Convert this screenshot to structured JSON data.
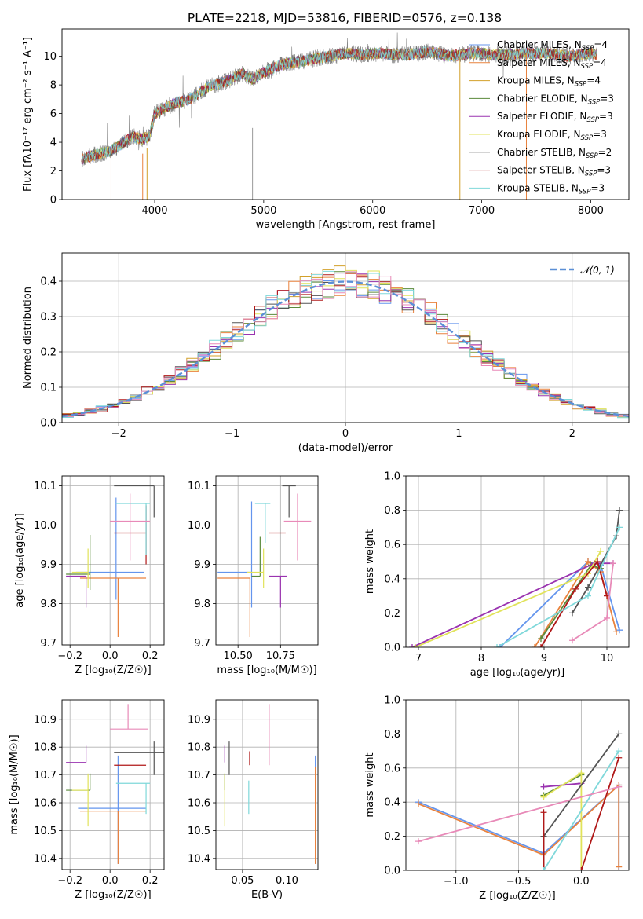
{
  "chart_data": [
    {
      "id": "spectrum",
      "type": "line",
      "title": "PLATE=2218, MJD=53816, FIBERID=0576, z=0.138",
      "xlabel": "wavelength [Angstrom, rest frame]",
      "ylabel": "Flux [f$_\\lambda$10$^{-17}$ erg cm$^{-2}$ s$^{-1}$ A$^{-1}$]",
      "ylabel_text": "Flux [fλ10⁻¹⁷ erg cm⁻² s⁻¹ A⁻¹]",
      "xlim": [
        3150,
        8350
      ],
      "ylim": [
        0,
        11.9
      ],
      "xticks": [
        "4000",
        "5000",
        "6000",
        "7000",
        "8000"
      ],
      "yticks": [
        "0",
        "2",
        "4",
        "6",
        "8",
        "10"
      ],
      "legend": "upper right",
      "series_names": [
        "Chabrier MILES, N_SSP=4",
        "Salpeter MILES, N_SSP=4",
        "Kroupa MILES, N_SSP=4",
        "Chabrier ELODIE, N_SSP=3",
        "Salpeter ELODIE, N_SSP=3",
        "Kroupa ELODIE, N_SSP=3",
        "Chabrier STELIB, N_SSP=2",
        "Salpeter STELIB, N_SSP=3",
        "Kroupa STELIB, N_SSP=3"
      ],
      "legend_items": [
        {
          "base": "Chabrier MILES, N",
          "sub": "SSP",
          "tail": "=4",
          "color": "#6495ed"
        },
        {
          "base": "Salpeter MILES, N",
          "sub": "SSP",
          "tail": "=4",
          "color": "#e9823d"
        },
        {
          "base": "Kroupa MILES, N",
          "sub": "SSP",
          "tail": "=4",
          "color": "#d2a02a"
        },
        {
          "base": "Chabrier ELODIE, N",
          "sub": "SSP",
          "tail": "=3",
          "color": "#5a8a3a"
        },
        {
          "base": "Salpeter ELODIE, N",
          "sub": "SSP",
          "tail": "=3",
          "color": "#9a33b0"
        },
        {
          "base": "Kroupa ELODIE, N",
          "sub": "SSP",
          "tail": "=3",
          "color": "#e1e35a"
        },
        {
          "base": "Chabrier STELIB, N",
          "sub": "SSP",
          "tail": "=2",
          "color": "#555555"
        },
        {
          "base": "Salpeter STELIB, N",
          "sub": "SSP",
          "tail": "=3",
          "color": "#b01818"
        },
        {
          "base": "Kroupa STELIB, N",
          "sub": "SSP",
          "tail": "=3",
          "color": "#7fd8da"
        }
      ],
      "data_series": {
        "name": "data",
        "color": "#808080"
      },
      "x": [
        3330,
        3400,
        3500,
        3600,
        3700,
        3800,
        3880,
        3950,
        4000,
        4100,
        4200,
        4300,
        4400,
        4500,
        4600,
        4700,
        4800,
        4900,
        5000,
        5100,
        5200,
        5300,
        5400,
        5500,
        5600,
        5700,
        5800,
        5900,
        6000,
        6100,
        6200,
        6300,
        6400,
        6500,
        6600,
        6700,
        6800,
        6900,
        7000,
        7100,
        7200,
        7300,
        7400,
        7500,
        7600,
        7700,
        7800,
        7900,
        8000,
        8060
      ],
      "y": [
        2.8,
        3.0,
        3.2,
        3.4,
        3.9,
        4.4,
        4.2,
        4.4,
        6.0,
        6.4,
        6.8,
        6.9,
        7.4,
        7.9,
        8.1,
        8.4,
        8.8,
        8.4,
        8.9,
        9.2,
        9.5,
        9.6,
        9.7,
        9.9,
        10.0,
        10.1,
        10.2,
        10.1,
        10.2,
        10.2,
        10.1,
        10.1,
        10.2,
        10.3,
        10.2,
        10.0,
        10.1,
        10.2,
        10.2,
        10.1,
        10.1,
        10.1,
        10.2,
        10.2,
        10.2,
        10.1,
        10.0,
        10.1,
        10.2,
        10.1
      ],
      "colors": [
        "#6495ed",
        "#e9823d",
        "#d2a02a",
        "#5a8a3a",
        "#9a33b0",
        "#e1e35a",
        "#555555",
        "#b01818",
        "#7fd8da"
      ]
    },
    {
      "id": "residuals",
      "type": "histogram",
      "xlabel": "(data-model)/error",
      "ylabel": "Normed distribution",
      "xlim": [
        -2.5,
        2.5
      ],
      "ylim": [
        0,
        0.48
      ],
      "xticks": [
        "−2",
        "−1",
        "0",
        "1",
        "2"
      ],
      "yticks": [
        "0.0",
        "0.1",
        "0.2",
        "0.3",
        "0.4"
      ],
      "grid": true,
      "legend": "upper right",
      "legend_label": "𝒩(0, 1)",
      "curve": {
        "name": "N(0,1)",
        "mean": 0,
        "sigma": 1,
        "color": "#5b8fd6"
      },
      "bin_width": 0.1,
      "colors": [
        "#6495ed",
        "#e9823d",
        "#d2a02a",
        "#5a8a3a",
        "#9a33b0",
        "#e1e35a",
        "#555555",
        "#b01818",
        "#7fd8da",
        "#e88ab8"
      ]
    },
    {
      "id": "age-Z",
      "type": "scatter",
      "xlabel": "Z [log₁₀(Z/Z☉)]",
      "ylabel": "age  [log₁₀(age/yr)]",
      "xlim": [
        -0.24,
        0.27
      ],
      "ylim": [
        9.695,
        10.125
      ],
      "xticks": [
        "−0.2",
        "0.0",
        "0.2"
      ],
      "yticks": [
        "9.7",
        "9.8",
        "9.9",
        "10.0",
        "10.1"
      ],
      "grid": true,
      "points": [
        {
          "x": 0.03,
          "y": 9.88,
          "xerr": [
            0.2,
            0.14
          ],
          "yerr": [
            0.07,
            0.19
          ],
          "color": "#6495ed"
        },
        {
          "x": 0.04,
          "y": 9.865,
          "xerr": [
            0.19,
            0.14
          ],
          "yerr": [
            0.15,
            0.0
          ],
          "color": "#e9823d"
        },
        {
          "x": -0.1,
          "y": 9.875,
          "xerr": [
            0.12,
            0.0
          ],
          "yerr": [
            0.04,
            0.1
          ],
          "color": "#5a8a3a"
        },
        {
          "x": -0.12,
          "y": 9.87,
          "xerr": [
            0.1,
            0.0
          ],
          "yerr": [
            0.08,
            0.0
          ],
          "color": "#9a33b0"
        },
        {
          "x": -0.11,
          "y": 9.88,
          "xerr": [
            0.08,
            0.0
          ],
          "yerr": [
            0.04,
            0.06
          ],
          "color": "#e1e35a"
        },
        {
          "x": 0.22,
          "y": 10.1,
          "xerr": [
            0.2,
            0.0
          ],
          "yerr": [
            0.08,
            0.0
          ],
          "color": "#555555"
        },
        {
          "x": 0.18,
          "y": 9.98,
          "xerr": [
            0.16,
            0.0
          ],
          "yerr": [
            0.08,
            0.07
          ],
          "color": "#b01818"
        },
        {
          "x": 0.18,
          "y": 10.055,
          "xerr": [
            0.15,
            0.02
          ],
          "yerr": [
            0.13,
            0.0
          ],
          "color": "#7fd8da"
        },
        {
          "x": 0.1,
          "y": 10.01,
          "xerr": [
            0.1,
            0.1
          ],
          "yerr": [
            0.1,
            0.07
          ],
          "color": "#e88ab8"
        }
      ]
    },
    {
      "id": "age-mass",
      "type": "scatter",
      "xlabel": "mass [log₁₀(M/M☉)]",
      "ylabel": "",
      "xlim": [
        10.37,
        10.97
      ],
      "ylim": [
        9.695,
        10.125
      ],
      "xticks": [
        "10.50",
        "10.75"
      ],
      "yticks": [
        "9.7",
        "9.8",
        "9.9",
        "10.0",
        "10.1"
      ],
      "grid": true,
      "points": [
        {
          "x": 10.58,
          "y": 9.88,
          "xerr": [
            0.2,
            0.0
          ],
          "yerr": [
            0.09,
            0.18
          ],
          "color": "#6495ed"
        },
        {
          "x": 10.57,
          "y": 9.865,
          "xerr": [
            0.19,
            0.0
          ],
          "yerr": [
            0.15,
            0.0
          ],
          "color": "#e9823d"
        },
        {
          "x": 10.63,
          "y": 9.87,
          "xerr": [
            0.05,
            0.0
          ],
          "yerr": [
            0.0,
            0.1
          ],
          "color": "#5a8a3a"
        },
        {
          "x": 10.75,
          "y": 9.87,
          "xerr": [
            0.07,
            0.04
          ],
          "yerr": [
            0.08,
            0.0
          ],
          "color": "#9a33b0"
        },
        {
          "x": 10.65,
          "y": 9.88,
          "xerr": [
            0.1,
            0.0
          ],
          "yerr": [
            0.04,
            0.06
          ],
          "color": "#e1e35a"
        },
        {
          "x": 10.8,
          "y": 10.1,
          "xerr": [
            0.04,
            0.04
          ],
          "yerr": [
            0.08,
            0.0
          ],
          "color": "#555555"
        },
        {
          "x": 10.73,
          "y": 9.98,
          "xerr": [
            0.05,
            0.05
          ],
          "yerr": [
            0.0,
            0.0
          ],
          "color": "#b01818"
        },
        {
          "x": 10.66,
          "y": 10.055,
          "xerr": [
            0.06,
            0.03
          ],
          "yerr": [
            0.1,
            0.0
          ],
          "color": "#7fd8da"
        },
        {
          "x": 10.85,
          "y": 10.01,
          "xerr": [
            0.08,
            0.08
          ],
          "yerr": [
            0.1,
            0.07
          ],
          "color": "#e88ab8"
        }
      ]
    },
    {
      "id": "weight-age",
      "type": "line",
      "xlabel": "age  [log₁₀(age/yr)]",
      "ylabel": "mass weight",
      "xlim": [
        6.8,
        10.35
      ],
      "ylim": [
        0,
        1.0
      ],
      "xticks": [
        "7",
        "8",
        "9",
        "10"
      ],
      "yticks": [
        "0.0",
        "0.2",
        "0.4",
        "0.6",
        "0.8",
        "1.0"
      ],
      "grid": true,
      "series": [
        {
          "color": "#6495ed",
          "x": [
            8.3,
            9.7,
            9.9,
            10.2
          ],
          "y": [
            0.0,
            0.5,
            0.48,
            0.1
          ]
        },
        {
          "color": "#e9823d",
          "x": [
            8.85,
            9.7,
            9.9,
            10.15
          ],
          "y": [
            0.0,
            0.5,
            0.44,
            0.09
          ]
        },
        {
          "color": "#5a8a3a",
          "x": [
            8.95,
            9.75,
            9.9
          ],
          "y": [
            0.05,
            0.48,
            0.46
          ]
        },
        {
          "color": "#9a33b0",
          "x": [
            6.9,
            9.8,
            10.1
          ],
          "y": [
            0.0,
            0.49,
            0.49
          ]
        },
        {
          "color": "#e1e35a",
          "x": [
            6.95,
            9.7,
            9.9
          ],
          "y": [
            0.0,
            0.43,
            0.56
          ]
        },
        {
          "color": "#555555",
          "x": [
            9.45,
            9.7,
            10.15,
            10.2
          ],
          "y": [
            0.2,
            0.35,
            0.65,
            0.8
          ]
        },
        {
          "color": "#b01818",
          "x": [
            8.95,
            9.5,
            9.85,
            10.0
          ],
          "y": [
            0.0,
            0.34,
            0.5,
            0.3
          ]
        },
        {
          "color": "#7fd8da",
          "x": [
            8.25,
            9.7,
            10.2
          ],
          "y": [
            0.0,
            0.3,
            0.7
          ]
        },
        {
          "color": "#e88ab8",
          "x": [
            9.45,
            10.0,
            10.1
          ],
          "y": [
            0.04,
            0.17,
            0.49
          ]
        }
      ]
    },
    {
      "id": "mass-Z",
      "type": "scatter",
      "xlabel": "Z [log₁₀(Z/Z☉)]",
      "ylabel": "mass [log₁₀(M/M☉)]",
      "xlim": [
        -0.24,
        0.27
      ],
      "ylim": [
        10.36,
        10.97
      ],
      "xticks": [
        "−0.2",
        "0.0",
        "0.2"
      ],
      "yticks": [
        "10.4",
        "10.5",
        "10.6",
        "10.7",
        "10.8",
        "10.9"
      ],
      "grid": true,
      "points": [
        {
          "x": 0.04,
          "y": 10.58,
          "xerr": [
            0.2,
            0.14
          ],
          "yerr": [
            0.2,
            0.19
          ],
          "color": "#6495ed"
        },
        {
          "x": 0.04,
          "y": 10.57,
          "xerr": [
            0.19,
            0.14
          ],
          "yerr": [
            0.19,
            0.0
          ],
          "color": "#e9823d"
        },
        {
          "x": -0.1,
          "y": 10.645,
          "xerr": [
            0.12,
            0.0
          ],
          "yerr": [
            0.0,
            0.06
          ],
          "color": "#5a8a3a"
        },
        {
          "x": -0.12,
          "y": 10.745,
          "xerr": [
            0.1,
            0.0
          ],
          "yerr": [
            0.0,
            0.06
          ],
          "color": "#9a33b0"
        },
        {
          "x": -0.11,
          "y": 10.645,
          "xerr": [
            0.08,
            0.0
          ],
          "yerr": [
            0.13,
            0.06
          ],
          "color": "#e1e35a"
        },
        {
          "x": 0.22,
          "y": 10.78,
          "xerr": [
            0.2,
            0.05
          ],
          "yerr": [
            0.08,
            0.04
          ],
          "color": "#555555"
        },
        {
          "x": 0.18,
          "y": 10.735,
          "xerr": [
            0.16,
            0.0
          ],
          "yerr": [
            0.0,
            0.0
          ],
          "color": "#b01818"
        },
        {
          "x": 0.18,
          "y": 10.67,
          "xerr": [
            0.15,
            0.02
          ],
          "yerr": [
            0.11,
            0.0
          ],
          "color": "#7fd8da"
        },
        {
          "x": 0.09,
          "y": 10.865,
          "xerr": [
            0.09,
            0.1
          ],
          "yerr": [
            0.0,
            0.09
          ],
          "color": "#e88ab8"
        }
      ]
    },
    {
      "id": "mass-EBV",
      "type": "scatter",
      "xlabel": "E(B-V)",
      "ylabel": "",
      "xlim": [
        0.02,
        0.135
      ],
      "ylim": [
        10.36,
        10.97
      ],
      "xticks": [
        "0.05",
        "0.10"
      ],
      "yticks": [
        "10.4",
        "10.5",
        "10.6",
        "10.7",
        "10.8",
        "10.9"
      ],
      "grid": true,
      "points": [
        {
          "x": 0.132,
          "y": 10.58,
          "yerr": [
            0.2,
            0.19
          ],
          "color": "#6495ed"
        },
        {
          "x": 0.132,
          "y": 10.57,
          "yerr": [
            0.19,
            0.16
          ],
          "color": "#e9823d"
        },
        {
          "x": 0.03,
          "y": 10.645,
          "yerr": [
            0.0,
            0.06
          ],
          "color": "#5a8a3a"
        },
        {
          "x": 0.03,
          "y": 10.745,
          "yerr": [
            0.0,
            0.06
          ],
          "color": "#9a33b0"
        },
        {
          "x": 0.03,
          "y": 10.645,
          "yerr": [
            0.13,
            0.06
          ],
          "color": "#e1e35a"
        },
        {
          "x": 0.035,
          "y": 10.78,
          "yerr": [
            0.08,
            0.04
          ],
          "color": "#555555"
        },
        {
          "x": 0.058,
          "y": 10.735,
          "yerr": [
            0.0,
            0.05
          ],
          "color": "#b01818"
        },
        {
          "x": 0.057,
          "y": 10.62,
          "yerr": [
            0.06,
            0.06
          ],
          "color": "#7fd8da"
        },
        {
          "x": 0.08,
          "y": 10.845,
          "yerr": [
            0.11,
            0.11
          ],
          "color": "#e88ab8"
        }
      ]
    },
    {
      "id": "weight-Z",
      "type": "line",
      "xlabel": "Z [log₁₀(Z/Z☉)]",
      "ylabel": "mass weight",
      "xlim": [
        -1.4,
        0.38
      ],
      "ylim": [
        0,
        1.0
      ],
      "xticks": [
        "−1.0",
        "−0.5",
        "0.0"
      ],
      "yticks": [
        "0.0",
        "0.2",
        "0.4",
        "0.6",
        "0.8",
        "1.0"
      ],
      "grid": true,
      "series": [
        {
          "color": "#6495ed",
          "x": [
            -1.3,
            -0.3,
            0.3,
            0.3
          ],
          "y": [
            0.4,
            0.1,
            0.5,
            0.0
          ]
        },
        {
          "color": "#e9823d",
          "x": [
            -1.3,
            -0.3,
            0.3,
            0.3
          ],
          "y": [
            0.39,
            0.09,
            0.5,
            0.02
          ]
        },
        {
          "color": "#5a8a3a",
          "x": [
            -0.3,
            0.0
          ],
          "y": [
            0.44,
            0.56
          ]
        },
        {
          "color": "#9a33b0",
          "x": [
            -0.3,
            0.0
          ],
          "y": [
            0.49,
            0.51
          ]
        },
        {
          "color": "#e1e35a",
          "x": [
            -0.3,
            0.0,
            0.0
          ],
          "y": [
            0.43,
            0.57,
            0.0
          ]
        },
        {
          "color": "#555555",
          "x": [
            -0.3,
            -0.3,
            0.3
          ],
          "y": [
            0.0,
            0.2,
            0.8
          ]
        },
        {
          "color": "#b01818",
          "x": [
            -0.3,
            -0.3,
            0.0,
            0.3
          ],
          "y": [
            0.34,
            0.0,
            0.0,
            0.66
          ]
        },
        {
          "color": "#7fd8da",
          "x": [
            -0.3,
            0.3
          ],
          "y": [
            0.0,
            0.7
          ]
        },
        {
          "color": "#e88ab8",
          "x": [
            -1.3,
            0.3
          ],
          "y": [
            0.17,
            0.49
          ]
        }
      ]
    }
  ]
}
